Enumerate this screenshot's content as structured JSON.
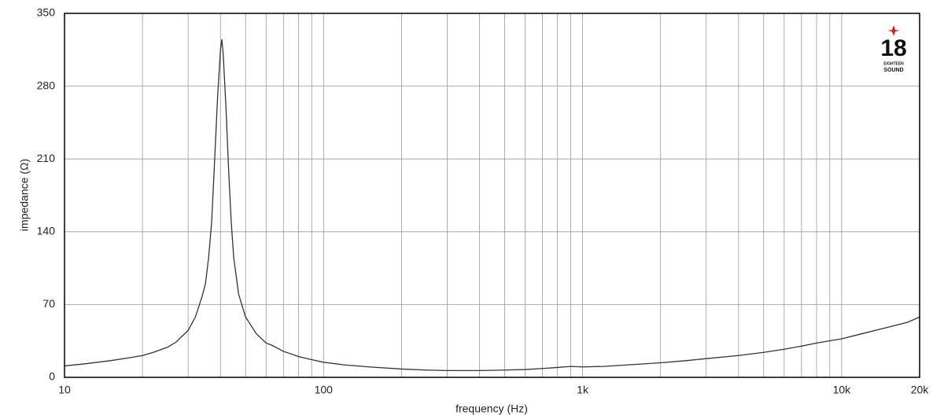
{
  "chart_data": {
    "type": "line",
    "x_label": "frequency (Hz)",
    "y_label": "impedance (Ω)",
    "x_scale": "log",
    "xlim": [
      10,
      20000
    ],
    "xticks": [
      10,
      100,
      {
        "value": 1000,
        "label": "1k"
      },
      {
        "value": 10000,
        "label": "10k"
      },
      {
        "value": 20000,
        "label": "20k"
      }
    ],
    "ylim": [
      0,
      350
    ],
    "yticks": [
      0,
      70,
      140,
      210,
      280,
      350
    ],
    "grid": true,
    "minor_grid": true,
    "color": "#333333",
    "x": [
      10,
      12,
      15,
      18,
      20,
      22,
      25,
      27,
      28,
      30,
      32,
      34,
      35,
      36,
      37,
      38,
      39,
      40,
      40.5,
      41,
      42,
      43,
      44,
      45,
      47,
      50,
      55,
      60,
      63,
      70,
      80,
      90,
      100,
      120,
      150,
      200,
      250,
      300,
      400,
      500,
      600,
      700,
      800,
      900,
      1000,
      1200,
      1500,
      2000,
      2500,
      3000,
      4000,
      5000,
      6000,
      7000,
      8000,
      10000,
      12000,
      15000,
      18000,
      20000
    ],
    "values": [
      11,
      13,
      16,
      19,
      21,
      24,
      29,
      34,
      38,
      45,
      58,
      78,
      90,
      115,
      150,
      210,
      270,
      315,
      325,
      310,
      260,
      200,
      150,
      115,
      80,
      58,
      42,
      33,
      31,
      25,
      20,
      17,
      14.5,
      12,
      10,
      8,
      7,
      6.5,
      6.5,
      7,
      7.5,
      8.5,
      9.5,
      10.5,
      10,
      10.5,
      12,
      14,
      16,
      18,
      21,
      24,
      27,
      30,
      33,
      37,
      42,
      48,
      53,
      58
    ]
  },
  "logo": {
    "number": "18",
    "line1": "EIGHTEEN",
    "line2": "SOUND"
  }
}
